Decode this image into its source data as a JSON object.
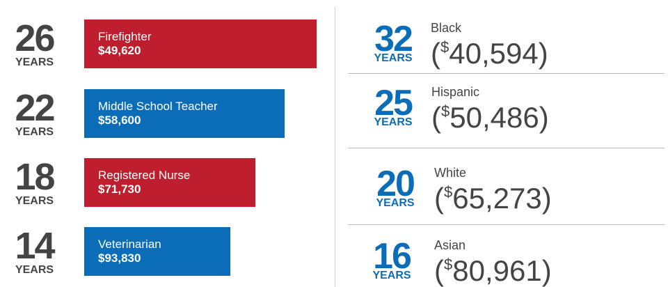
{
  "occupations": [
    {
      "years": "26",
      "unit": "YEARS",
      "title": "Firefighter",
      "salary": "$49,620"
    },
    {
      "years": "22",
      "unit": "YEARS",
      "title": "Middle School Teacher",
      "salary": "$58,600"
    },
    {
      "years": "18",
      "unit": "YEARS",
      "title": "Registered Nurse",
      "salary": "$71,730"
    },
    {
      "years": "14",
      "unit": "YEARS",
      "title": "Veterinarian",
      "salary": "$93,830"
    }
  ],
  "groups": [
    {
      "years": "32",
      "unit": "YEARS",
      "name": "Black",
      "open": "(",
      "currency": "$",
      "amount": "40,594",
      "close": ")"
    },
    {
      "years": "25",
      "unit": "YEARS",
      "name": "Hispanic",
      "open": "(",
      "currency": "$",
      "amount": "50,486",
      "close": ")"
    },
    {
      "years": "20",
      "unit": "YEARS",
      "name": "White",
      "open": "(",
      "currency": "$",
      "amount": "65,273",
      "close": ")"
    },
    {
      "years": "16",
      "unit": "YEARS",
      "name": "Asian",
      "open": "(",
      "currency": "$",
      "amount": "80,961",
      "close": ")"
    }
  ]
}
